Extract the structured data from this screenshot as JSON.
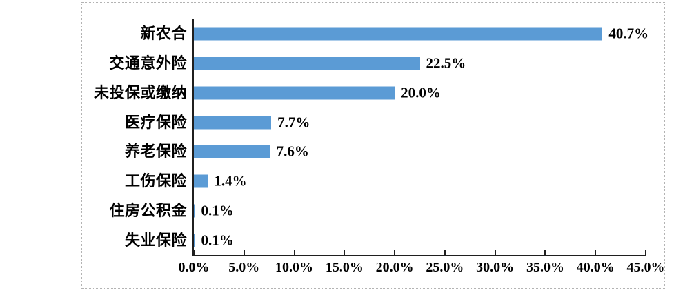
{
  "chart_data": {
    "type": "bar",
    "orientation": "horizontal",
    "title": "",
    "xlabel": "",
    "ylabel": "",
    "categories": [
      "新农合",
      "交通意外险",
      "未投保或缴纳",
      "医疗保险",
      "养老保险",
      "工伤保险",
      "住房公积金",
      "失业保险"
    ],
    "values": [
      40.7,
      22.5,
      20.0,
      7.7,
      7.6,
      1.4,
      0.1,
      0.1
    ],
    "value_labels": [
      "40.7%",
      "22.5%",
      "20.0%",
      "7.7%",
      "7.6%",
      "1.4%",
      "0.1%",
      "0.1%"
    ],
    "x_tick_values": [
      0,
      5,
      10,
      15,
      20,
      25,
      30,
      35,
      40,
      45
    ],
    "x_tick_labels": [
      "0.0%",
      "5.0%",
      "10.0%",
      "15.0%",
      "20.0%",
      "25.0%",
      "30.0%",
      "35.0%",
      "40.0%",
      "45.0%"
    ],
    "xlim": [
      0,
      45
    ],
    "grid": "off",
    "legend": "none",
    "colors": {
      "bar": "#5b9bd5",
      "axis": "#1f1f1f",
      "text": "#000000",
      "box_border": "#b3b3b3",
      "background": "#ffffff"
    }
  }
}
